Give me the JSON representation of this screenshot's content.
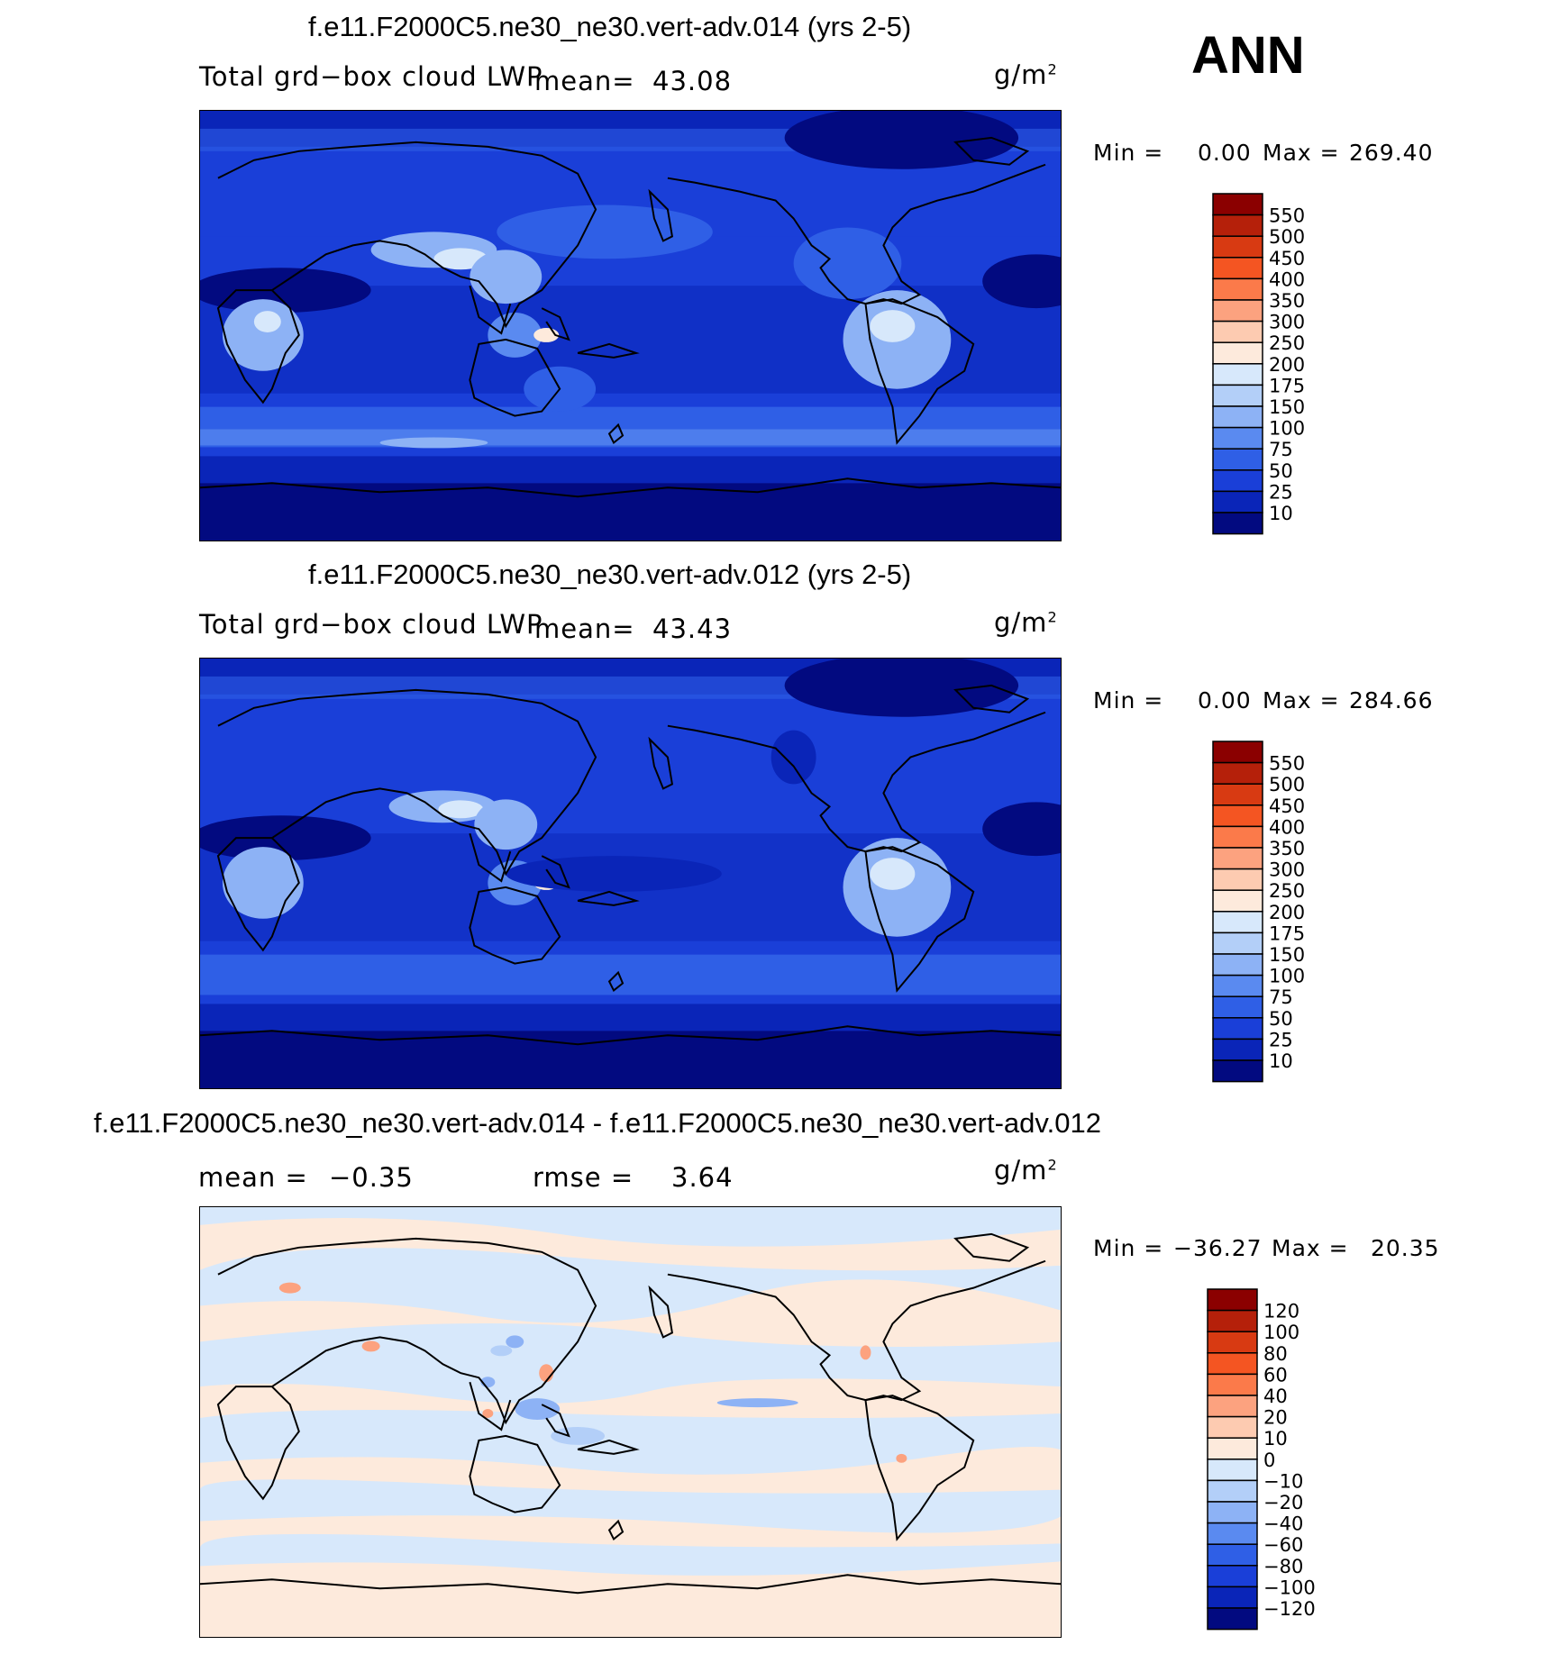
{
  "season": "ANN",
  "panels": [
    {
      "title": "f.e11.F2000C5.ne30_ne30.vert-adv.014 (yrs 2-5)",
      "variable": "Total grd−box cloud LWP",
      "mean_label": "mean=",
      "mean_value": "43.08",
      "units_base": "g/m",
      "units_exp": "2",
      "min_label": "Min =",
      "min_value": "0.00",
      "max_label": "Max =",
      "max_value": "269.40",
      "colorbar": {
        "labels": [
          "550",
          "500",
          "450",
          "400",
          "350",
          "300",
          "250",
          "200",
          "175",
          "150",
          "100",
          "75",
          "50",
          "25",
          "10"
        ],
        "colors": [
          "#8b0000",
          "#b5200a",
          "#d83a12",
          "#f45522",
          "#fb7a4a",
          "#fca27f",
          "#fdcbb1",
          "#fdeadc",
          "#d7e8fb",
          "#b3cff8",
          "#8db2f5",
          "#5a8af0",
          "#2f5fe6",
          "#1a3fd8",
          "#0a25b8",
          "#020a80"
        ]
      }
    },
    {
      "title": "f.e11.F2000C5.ne30_ne30.vert-adv.012 (yrs 2-5)",
      "variable": "Total grd−box cloud LWP",
      "mean_label": "mean=",
      "mean_value": "43.43",
      "units_base": "g/m",
      "units_exp": "2",
      "min_label": "Min =",
      "min_value": "0.00",
      "max_label": "Max =",
      "max_value": "284.66",
      "colorbar": {
        "labels": [
          "550",
          "500",
          "450",
          "400",
          "350",
          "300",
          "250",
          "200",
          "175",
          "150",
          "100",
          "75",
          "50",
          "25",
          "10"
        ],
        "colors": [
          "#8b0000",
          "#b5200a",
          "#d83a12",
          "#f45522",
          "#fb7a4a",
          "#fca27f",
          "#fdcbb1",
          "#fdeadc",
          "#d7e8fb",
          "#b3cff8",
          "#8db2f5",
          "#5a8af0",
          "#2f5fe6",
          "#1a3fd8",
          "#0a25b8",
          "#020a80"
        ]
      }
    },
    {
      "title": "f.e11.F2000C5.ne30_ne30.vert-adv.014 - f.e11.F2000C5.ne30_ne30.vert-adv.012",
      "mean_label": "mean =",
      "mean_value": "−0.35",
      "rmse_label": "rmse =",
      "rmse_value": "3.64",
      "units_base": "g/m",
      "units_exp": "2",
      "min_label": "Min =",
      "min_value": "−36.27",
      "max_label": "Max =",
      "max_value": "20.35",
      "colorbar": {
        "labels": [
          "120",
          "100",
          "80",
          "60",
          "40",
          "20",
          "10",
          "0",
          "−10",
          "−20",
          "−40",
          "−60",
          "−80",
          "−100",
          "−120"
        ],
        "colors": [
          "#8b0000",
          "#b5200a",
          "#d83a12",
          "#f45522",
          "#fb7a4a",
          "#fca27f",
          "#fdcbb1",
          "#fdeadc",
          "#d7e8fb",
          "#b3cff8",
          "#8db2f5",
          "#5a8af0",
          "#2f5fe6",
          "#1a3fd8",
          "#0a25b8",
          "#020a80"
        ]
      }
    }
  ]
}
